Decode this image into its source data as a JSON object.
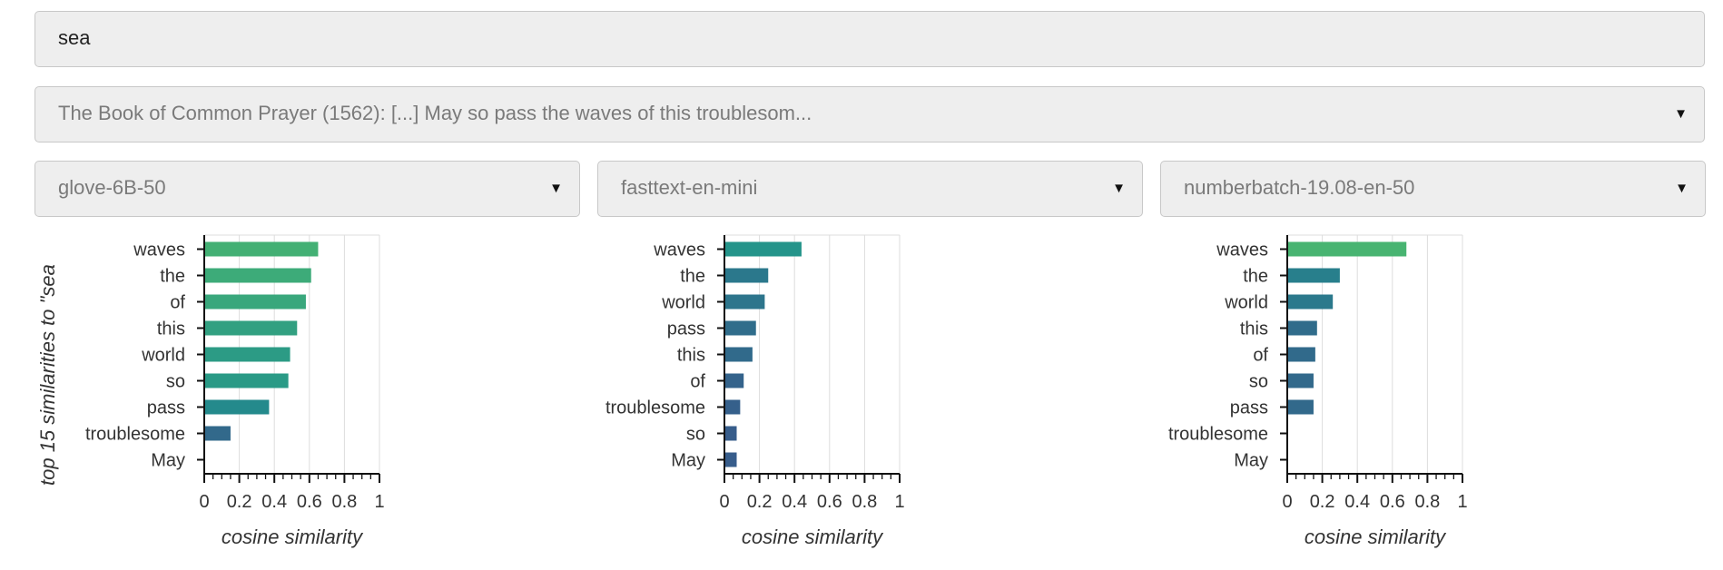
{
  "query": {
    "value": "sea"
  },
  "passage_select": {
    "value": "The Book of Common Prayer (1562): [...] May so pass the waves of this troublesom...",
    "caret": "▼"
  },
  "model_selects": [
    {
      "value": "glove-6B-50",
      "caret": "▼"
    },
    {
      "value": "fasttext-en-mini",
      "caret": "▼"
    },
    {
      "value": "numberbatch-19.08-en-50",
      "caret": "▼"
    }
  ],
  "y_axis_title": "top 15 similarities to \"sea",
  "chart_data": [
    {
      "type": "bar",
      "orientation": "horizontal",
      "xlabel": "cosine similarity",
      "xlim": [
        0,
        1
      ],
      "xticks": [
        "0",
        "0.2",
        "0.4",
        "0.6",
        "0.8",
        "1"
      ],
      "grid": true,
      "colormap": "viridis",
      "categories": [
        "waves",
        "the",
        "of",
        "this",
        "world",
        "so",
        "pass",
        "troublesome",
        "May"
      ],
      "values": [
        0.65,
        0.61,
        0.58,
        0.53,
        0.49,
        0.48,
        0.37,
        0.15,
        0.0
      ]
    },
    {
      "type": "bar",
      "orientation": "horizontal",
      "xlabel": "cosine similarity",
      "xlim": [
        0,
        1
      ],
      "xticks": [
        "0",
        "0.2",
        "0.4",
        "0.6",
        "0.8",
        "1"
      ],
      "grid": true,
      "colormap": "viridis",
      "categories": [
        "waves",
        "the",
        "world",
        "pass",
        "this",
        "of",
        "troublesome",
        "so",
        "May"
      ],
      "values": [
        0.44,
        0.25,
        0.23,
        0.18,
        0.16,
        0.11,
        0.09,
        0.07,
        0.07
      ]
    },
    {
      "type": "bar",
      "orientation": "horizontal",
      "xlabel": "cosine similarity",
      "xlim": [
        0,
        1
      ],
      "xticks": [
        "0",
        "0.2",
        "0.4",
        "0.6",
        "0.8",
        "1"
      ],
      "grid": true,
      "colormap": "viridis",
      "categories": [
        "waves",
        "the",
        "world",
        "this",
        "of",
        "so",
        "pass",
        "troublesome",
        "May"
      ],
      "values": [
        0.68,
        0.3,
        0.26,
        0.17,
        0.16,
        0.15,
        0.15,
        0.0,
        0.0
      ]
    }
  ]
}
